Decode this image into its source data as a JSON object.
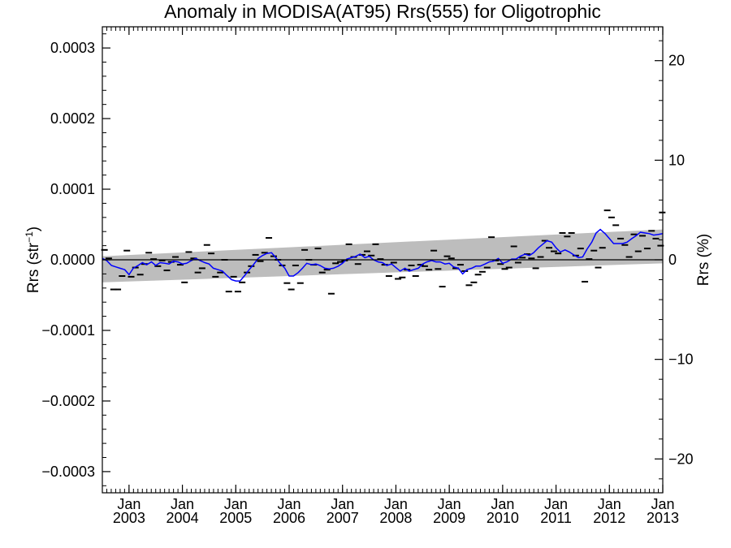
{
  "chart_data": {
    "type": "line",
    "title": "Anomaly in MODISA(AT95) Rrs(555) for Oligotrophic",
    "ylabel_left": {
      "main": "Rrs (str",
      "sup": "−1",
      "close": ")"
    },
    "ylabel_right": "Rrs (%)",
    "xlim": [
      2002.5,
      2013.0
    ],
    "ylim_left": [
      -0.00033,
      0.00033
    ],
    "ylim_right": [
      -23.4,
      23.4
    ],
    "x_ticks": [
      {
        "x": 2003,
        "month": "Jan",
        "year": "2003"
      },
      {
        "x": 2004,
        "month": "Jan",
        "year": "2004"
      },
      {
        "x": 2005,
        "month": "Jan",
        "year": "2005"
      },
      {
        "x": 2006,
        "month": "Jan",
        "year": "2006"
      },
      {
        "x": 2007,
        "month": "Jan",
        "year": "2007"
      },
      {
        "x": 2008,
        "month": "Jan",
        "year": "2008"
      },
      {
        "x": 2009,
        "month": "Jan",
        "year": "2009"
      },
      {
        "x": 2010,
        "month": "Jan",
        "year": "2010"
      },
      {
        "x": 2011,
        "month": "Jan",
        "year": "2011"
      },
      {
        "x": 2012,
        "month": "Jan",
        "year": "2012"
      },
      {
        "x": 2013,
        "month": "Jan",
        "year": "2013"
      }
    ],
    "y_ticks_left": [
      {
        "v": 0.0003,
        "label": "0.0003"
      },
      {
        "v": 0.0002,
        "label": "0.0002"
      },
      {
        "v": 0.0001,
        "label": "0.0001"
      },
      {
        "v": 0.0,
        "label": "0.0000"
      },
      {
        "v": -0.0001,
        "label": "−0.0001"
      },
      {
        "v": -0.0002,
        "label": "−0.0002"
      },
      {
        "v": -0.0003,
        "label": "−0.0003"
      }
    ],
    "y_ticks_right": [
      {
        "v": 20,
        "label": "20"
      },
      {
        "v": 10,
        "label": "10"
      },
      {
        "v": 0,
        "label": "0"
      },
      {
        "v": -10,
        "label": "−10"
      },
      {
        "v": -20,
        "label": "−20"
      }
    ],
    "trend_band": {
      "x": [
        2002.5,
        2013.0
      ],
      "upper": [
        5e-06,
        4.3e-05
      ],
      "lower": [
        -3.2e-05,
        -5e-06
      ]
    },
    "zero_line": 0,
    "colors": {
      "mean_line": "#0000ff",
      "band": "#bdbdbd",
      "points": "#000000"
    },
    "series": [
      {
        "name": "",
        "style": "dash-markers",
        "points": [
          [
            2002.54,
            1.4e-05
          ],
          [
            2002.62,
            2e-06
          ],
          [
            2002.71,
            -4.2e-05
          ],
          [
            2002.79,
            -4.2e-05
          ],
          [
            2002.87,
            -2.3e-05
          ],
          [
            2002.96,
            1.3e-05
          ],
          [
            2003.04,
            -2.4e-05
          ],
          [
            2003.12,
            -1.1e-05
          ],
          [
            2003.21,
            -2.1e-05
          ],
          [
            2003.29,
            -6e-06
          ],
          [
            2003.37,
            1e-05
          ],
          [
            2003.46,
            1e-06
          ],
          [
            2003.54,
            -9e-06
          ],
          [
            2003.62,
            -1e-06
          ],
          [
            2003.71,
            -1.5e-05
          ],
          [
            2003.79,
            -3e-06
          ],
          [
            2003.87,
            4e-06
          ],
          [
            2003.96,
            -7e-06
          ],
          [
            2004.04,
            -3.2e-05
          ],
          [
            2004.12,
            1.1e-05
          ],
          [
            2004.21,
            2e-06
          ],
          [
            2004.29,
            -1.8e-05
          ],
          [
            2004.37,
            -1.2e-05
          ],
          [
            2004.46,
            2.1e-05
          ],
          [
            2004.54,
            9e-06
          ],
          [
            2004.62,
            -2.4e-05
          ],
          [
            2004.71,
            -1.8e-05
          ],
          [
            2004.79,
            0.0
          ],
          [
            2004.87,
            -4.5e-05
          ],
          [
            2004.96,
            -2.4e-05
          ],
          [
            2005.04,
            -4.5e-05
          ],
          [
            2005.12,
            -3.2e-05
          ],
          [
            2005.21,
            -1.8e-05
          ],
          [
            2005.29,
            -9e-06
          ],
          [
            2005.37,
            7e-06
          ],
          [
            2005.46,
            -2e-06
          ],
          [
            2005.54,
            1e-05
          ],
          [
            2005.62,
            3.1e-05
          ],
          [
            2005.71,
            5e-06
          ],
          [
            2005.79,
            0.0
          ],
          [
            2005.87,
            -8e-06
          ],
          [
            2005.96,
            -3.3e-05
          ],
          [
            2006.04,
            -4.2e-05
          ],
          [
            2006.12,
            -8e-06
          ],
          [
            2006.21,
            -3.3e-05
          ],
          [
            2006.29,
            1.4e-05
          ],
          [
            2006.37,
            0.0
          ],
          [
            2006.46,
            -7e-06
          ],
          [
            2006.54,
            1.6e-05
          ],
          [
            2006.62,
            -1.8e-05
          ],
          [
            2006.71,
            -1.4e-05
          ],
          [
            2006.79,
            -4.8e-05
          ],
          [
            2006.87,
            -5e-06
          ],
          [
            2006.96,
            -3e-06
          ],
          [
            2007.04,
            -1e-06
          ],
          [
            2007.12,
            2.2e-05
          ],
          [
            2007.21,
            4e-06
          ],
          [
            2007.29,
            -6e-06
          ],
          [
            2007.37,
            7e-06
          ],
          [
            2007.46,
            1.2e-05
          ],
          [
            2007.54,
            6e-06
          ],
          [
            2007.62,
            2.2e-05
          ],
          [
            2007.71,
            1e-06
          ],
          [
            2007.79,
            -7e-06
          ],
          [
            2007.87,
            -2.3e-05
          ],
          [
            2007.96,
            -4e-06
          ],
          [
            2008.04,
            -2.7e-05
          ],
          [
            2008.12,
            -2.5e-05
          ],
          [
            2008.21,
            -1.4e-05
          ],
          [
            2008.29,
            -8e-06
          ],
          [
            2008.37,
            -2.3e-05
          ],
          [
            2008.46,
            -7e-06
          ],
          [
            2008.54,
            -9e-06
          ],
          [
            2008.62,
            -1.4e-05
          ],
          [
            2008.71,
            1.3e-05
          ],
          [
            2008.79,
            -1.3e-05
          ],
          [
            2008.87,
            -3.8e-05
          ],
          [
            2008.96,
            5e-06
          ],
          [
            2009.04,
            2e-06
          ],
          [
            2009.12,
            -1.2e-05
          ],
          [
            2009.21,
            -7e-06
          ],
          [
            2009.29,
            -1.6e-05
          ],
          [
            2009.37,
            -3.6e-05
          ],
          [
            2009.46,
            -3.2e-05
          ],
          [
            2009.54,
            -2.1e-05
          ],
          [
            2009.62,
            -1.7e-05
          ],
          [
            2009.71,
            -1.1e-05
          ],
          [
            2009.79,
            3.2e-05
          ],
          [
            2009.87,
            -1e-06
          ],
          [
            2009.96,
            -6e-06
          ],
          [
            2010.04,
            -1.3e-05
          ],
          [
            2010.12,
            -1.1e-05
          ],
          [
            2010.21,
            1.9e-05
          ],
          [
            2010.29,
            -4e-06
          ],
          [
            2010.37,
            3e-06
          ],
          [
            2010.46,
            8e-06
          ],
          [
            2010.54,
            2e-06
          ],
          [
            2010.62,
            -1.2e-05
          ],
          [
            2010.71,
            4e-06
          ],
          [
            2010.79,
            2.7e-05
          ],
          [
            2010.87,
            1.7e-05
          ],
          [
            2010.96,
            1.2e-05
          ],
          [
            2011.04,
            9e-06
          ],
          [
            2011.12,
            3.8e-05
          ],
          [
            2011.21,
            3.3e-05
          ],
          [
            2011.29,
            3.8e-05
          ],
          [
            2011.37,
            6e-06
          ],
          [
            2011.46,
            1.6e-05
          ],
          [
            2011.54,
            -3.1e-05
          ],
          [
            2011.62,
            1e-06
          ],
          [
            2011.71,
            1.3e-05
          ],
          [
            2011.79,
            -1.1e-05
          ],
          [
            2011.87,
            1.7e-05
          ],
          [
            2011.96,
            7e-05
          ],
          [
            2012.04,
            6e-05
          ],
          [
            2012.12,
            4.9e-05
          ],
          [
            2012.21,
            3e-05
          ],
          [
            2012.29,
            2.1e-05
          ],
          [
            2012.37,
            4e-06
          ],
          [
            2012.46,
            3.6e-05
          ],
          [
            2012.54,
            1.2e-05
          ],
          [
            2012.62,
            3.4e-05
          ],
          [
            2012.71,
            1.6e-05
          ],
          [
            2012.79,
            4.1e-05
          ],
          [
            2012.87,
            3e-05
          ],
          [
            2012.96,
            2e-05
          ],
          [
            2012.99,
            6.7e-05
          ]
        ]
      },
      {
        "name": "",
        "style": "line",
        "points": [
          [
            2002.5,
            2e-06
          ],
          [
            2002.58,
            -1e-06
          ],
          [
            2002.67,
            -8e-06
          ],
          [
            2002.75,
            -1e-05
          ],
          [
            2002.83,
            -1.2e-05
          ],
          [
            2002.92,
            -1.4e-05
          ],
          [
            2003.0,
            -2.1e-05
          ],
          [
            2003.08,
            -1.2e-05
          ],
          [
            2003.17,
            -8e-06
          ],
          [
            2003.25,
            -4e-06
          ],
          [
            2003.33,
            -7e-06
          ],
          [
            2003.42,
            -3e-06
          ],
          [
            2003.5,
            -8e-06
          ],
          [
            2003.58,
            -4e-06
          ],
          [
            2003.67,
            -5e-06
          ],
          [
            2003.75,
            -6e-06
          ],
          [
            2003.83,
            -2e-06
          ],
          [
            2003.92,
            -3e-06
          ],
          [
            2004.0,
            -6e-06
          ],
          [
            2004.08,
            -5e-06
          ],
          [
            2004.17,
            -1e-06
          ],
          [
            2004.25,
            2e-06
          ],
          [
            2004.33,
            -1e-06
          ],
          [
            2004.42,
            -4e-06
          ],
          [
            2004.5,
            -6e-06
          ],
          [
            2004.58,
            -1.2e-05
          ],
          [
            2004.67,
            -1.4e-05
          ],
          [
            2004.75,
            -1.6e-05
          ],
          [
            2004.83,
            -2.2e-05
          ],
          [
            2004.92,
            -2.8e-05
          ],
          [
            2005.0,
            -3e-05
          ],
          [
            2005.08,
            -3e-05
          ],
          [
            2005.17,
            -2.2e-05
          ],
          [
            2005.25,
            -1.4e-05
          ],
          [
            2005.33,
            -7e-06
          ],
          [
            2005.42,
            2e-06
          ],
          [
            2005.5,
            6e-06
          ],
          [
            2005.58,
            9e-06
          ],
          [
            2005.67,
            1e-05
          ],
          [
            2005.75,
            3e-06
          ],
          [
            2005.83,
            -5e-06
          ],
          [
            2005.92,
            -1.2e-05
          ],
          [
            2006.0,
            -2.3e-05
          ],
          [
            2006.08,
            -2.3e-05
          ],
          [
            2006.17,
            -1.8e-05
          ],
          [
            2006.25,
            -1.2e-05
          ],
          [
            2006.33,
            -5e-06
          ],
          [
            2006.42,
            -7e-06
          ],
          [
            2006.5,
            -6e-06
          ],
          [
            2006.58,
            -8e-06
          ],
          [
            2006.67,
            -1.2e-05
          ],
          [
            2006.75,
            -1.3e-05
          ],
          [
            2006.83,
            -1.2e-05
          ],
          [
            2006.92,
            -9e-06
          ],
          [
            2007.0,
            -5e-06
          ],
          [
            2007.08,
            1e-06
          ],
          [
            2007.17,
            3e-06
          ],
          [
            2007.25,
            5e-06
          ],
          [
            2007.33,
            8e-06
          ],
          [
            2007.42,
            3e-06
          ],
          [
            2007.5,
            5e-06
          ],
          [
            2007.58,
            0.0
          ],
          [
            2007.67,
            -3e-06
          ],
          [
            2007.75,
            -4e-06
          ],
          [
            2007.83,
            -8e-06
          ],
          [
            2007.92,
            -6e-06
          ],
          [
            2008.0,
            -1.1e-05
          ],
          [
            2008.08,
            -1.6e-05
          ],
          [
            2008.17,
            -1.2e-05
          ],
          [
            2008.25,
            -1.6e-05
          ],
          [
            2008.33,
            -1.4e-05
          ],
          [
            2008.42,
            -1.2e-05
          ],
          [
            2008.5,
            -6e-06
          ],
          [
            2008.58,
            -3e-06
          ],
          [
            2008.67,
            -1e-06
          ],
          [
            2008.75,
            -3e-06
          ],
          [
            2008.83,
            -3e-06
          ],
          [
            2008.92,
            -6e-06
          ],
          [
            2009.0,
            -5e-06
          ],
          [
            2009.08,
            -1e-05
          ],
          [
            2009.17,
            -1.2e-05
          ],
          [
            2009.25,
            -2e-05
          ],
          [
            2009.33,
            -1.4e-05
          ],
          [
            2009.42,
            -1.2e-05
          ],
          [
            2009.5,
            -9e-06
          ],
          [
            2009.58,
            -9e-06
          ],
          [
            2009.67,
            -6e-06
          ],
          [
            2009.75,
            -3e-06
          ],
          [
            2009.83,
            -2e-06
          ],
          [
            2009.92,
            2e-06
          ],
          [
            2010.0,
            -5e-06
          ],
          [
            2010.08,
            -3e-06
          ],
          [
            2010.17,
            1e-06
          ],
          [
            2010.25,
            1e-06
          ],
          [
            2010.33,
            5e-06
          ],
          [
            2010.42,
            8e-06
          ],
          [
            2010.5,
            6e-06
          ],
          [
            2010.58,
            1e-05
          ],
          [
            2010.67,
            1.7e-05
          ],
          [
            2010.75,
            2.2e-05
          ],
          [
            2010.83,
            2.7e-05
          ],
          [
            2010.92,
            2.5e-05
          ],
          [
            2011.0,
            1.7e-05
          ],
          [
            2011.08,
            1.1e-05
          ],
          [
            2011.17,
            1.4e-05
          ],
          [
            2011.25,
            1.1e-05
          ],
          [
            2011.33,
            7e-06
          ],
          [
            2011.42,
            3e-06
          ],
          [
            2011.5,
            4e-06
          ],
          [
            2011.58,
            1.5e-05
          ],
          [
            2011.67,
            2.5e-05
          ],
          [
            2011.75,
            3.8e-05
          ],
          [
            2011.83,
            4.3e-05
          ],
          [
            2011.92,
            3.7e-05
          ],
          [
            2012.0,
            3e-05
          ],
          [
            2012.08,
            2.3e-05
          ],
          [
            2012.17,
            2.3e-05
          ],
          [
            2012.25,
            2.3e-05
          ],
          [
            2012.33,
            2.5e-05
          ],
          [
            2012.42,
            3e-05
          ],
          [
            2012.5,
            3.4e-05
          ],
          [
            2012.58,
            3.9e-05
          ],
          [
            2012.67,
            3.8e-05
          ],
          [
            2012.75,
            3.7e-05
          ],
          [
            2012.83,
            3.5e-05
          ],
          [
            2012.92,
            3.6e-05
          ],
          [
            2013.0,
            3.7e-05
          ]
        ]
      }
    ]
  }
}
